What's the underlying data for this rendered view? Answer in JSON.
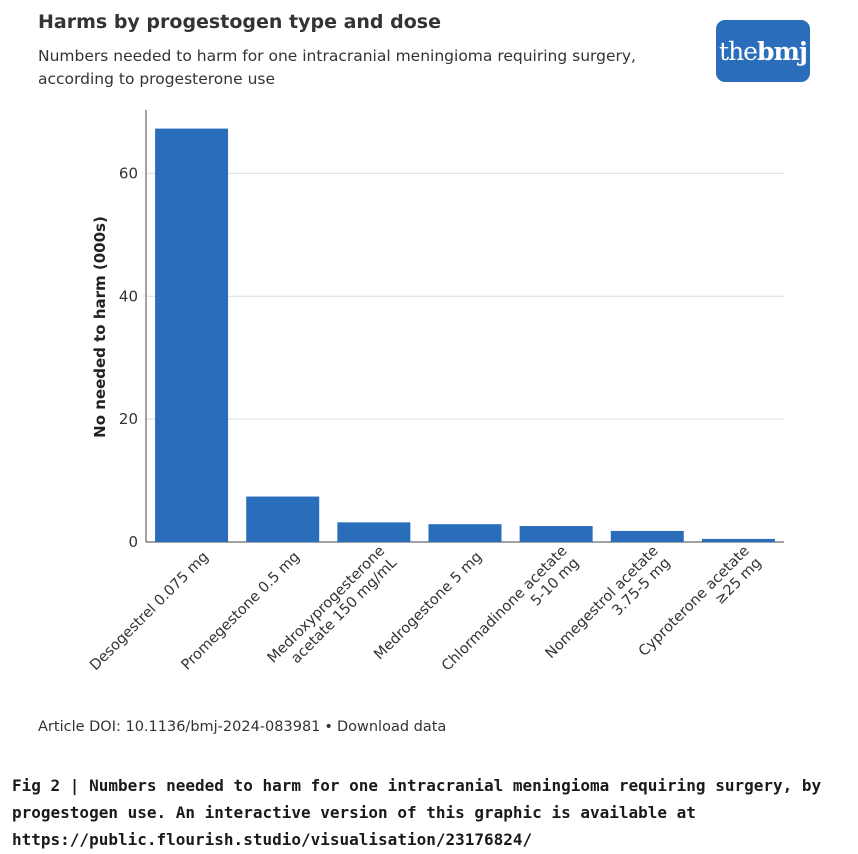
{
  "header": {
    "title": "Harms by progestogen type and dose",
    "subtitle": "Numbers needed to harm for one intracranial meningioma requiring surgery, according to progesterone use",
    "logo_the": "the",
    "logo_bmj": "bmj"
  },
  "chart_data": {
    "type": "bar",
    "title": "Harms by progestogen type and dose",
    "subtitle": "Numbers needed to harm for one intracranial meningioma requiring surgery, according to progesterone use",
    "xlabel": "",
    "ylabel": "No needed to harm (000s)",
    "ylim": [
      0,
      70
    ],
    "yticks": [
      0,
      20,
      40,
      60
    ],
    "grid": true,
    "color": "#2a6ebb",
    "categories": [
      [
        "Desogestrel 0.075 mg"
      ],
      [
        "Promegestone 0.5 mg"
      ],
      [
        "Medroxyprogesterone",
        "acetate 150 mg/mL"
      ],
      [
        "Medrogestone 5 mg"
      ],
      [
        "Chlormadinone acetate",
        "5-10 mg"
      ],
      [
        "Nomegestrol acetate",
        "3.75-5 mg"
      ],
      [
        "Cyproterone acetate",
        "≥25 mg"
      ]
    ],
    "values": [
      67.3,
      7.4,
      3.2,
      2.9,
      2.6,
      1.8,
      0.5
    ]
  },
  "footer": {
    "doi": "Article DOI: 10.1136/bmj-2024-083981",
    "separator": "•",
    "download": "Download data"
  },
  "caption": "Fig 2 | Numbers needed to harm for one intracranial meningioma requiring surgery, by progestogen use. An interactive version of this graphic is available at https://public.flourish.studio/visualisation/23176824/"
}
